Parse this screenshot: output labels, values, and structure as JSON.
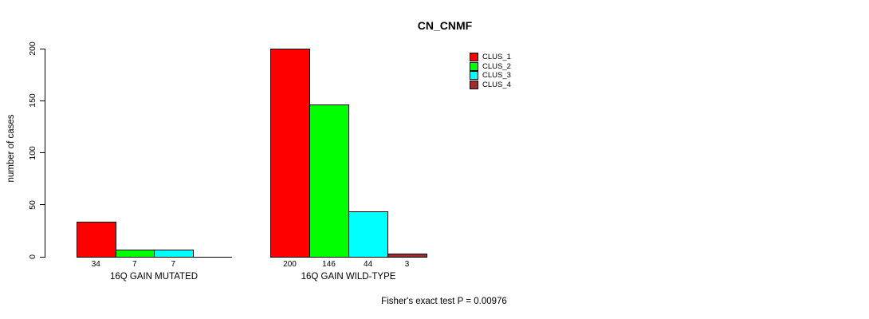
{
  "chart_data": {
    "type": "bar",
    "title": "CN_CNMF",
    "ylabel": "number of cases",
    "xlabel": "",
    "ylim": [
      0,
      200
    ],
    "yticks": [
      0,
      50,
      100,
      150,
      200
    ],
    "grid": false,
    "legend_position": "top-right",
    "series": [
      {
        "name": "CLUS_1",
        "color": "#FF0000"
      },
      {
        "name": "CLUS_2",
        "color": "#00FF00"
      },
      {
        "name": "CLUS_3",
        "color": "#00FFFF"
      },
      {
        "name": "CLUS_4",
        "color": "#A52A2A"
      }
    ],
    "groups": [
      {
        "label": "16Q GAIN MUTATED",
        "values": [
          34,
          7,
          7,
          0
        ],
        "value_labels": [
          "34",
          "7",
          "7",
          ""
        ]
      },
      {
        "label": "16Q GAIN WILD-TYPE",
        "values": [
          200,
          146,
          44,
          3
        ],
        "value_labels": [
          "200",
          "146",
          "44",
          "3"
        ]
      }
    ],
    "footnote": "Fisher's exact test P = 0.00976"
  }
}
